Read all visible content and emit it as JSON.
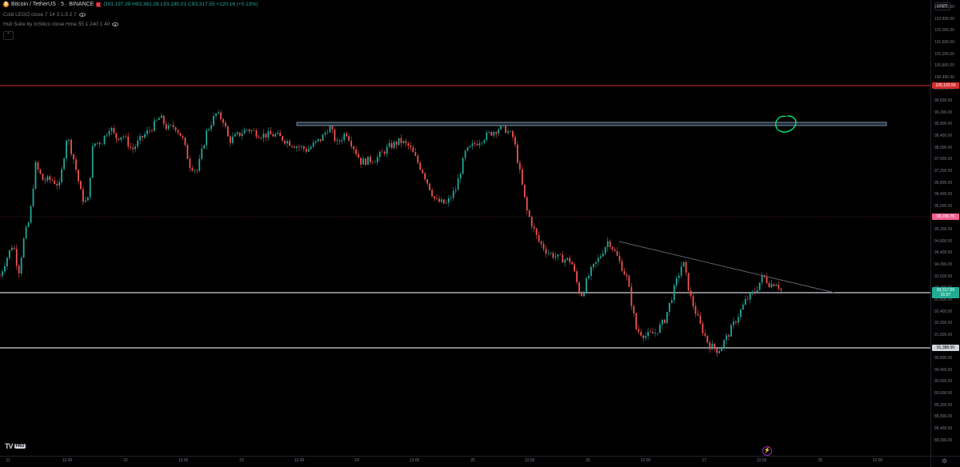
{
  "header": {
    "symbol": "Bitcoin / TetherUS · 5 · BINANCE",
    "ohlc": "O93,197.39 H93,361.28 L93,180.01 C93,317.55 +120.16 (+0.13%)",
    "indicator1": "Cold LEGO close 7 14 3 1.5 2 7",
    "indicator2": "Hull Suite by InSilico close Hma 55 1 240 1 40",
    "collapse_glyph": "⌃"
  },
  "price_axis": {
    "currency": "USDT",
    "ticks": [
      "102,800.00",
      "102,400.00",
      "102,000.00",
      "101,600.00",
      "101,200.00",
      "100,800.00",
      "100,400.00",
      "100,000.00",
      "99,600.00",
      "99,200.00",
      "98,800.00",
      "98,400.00",
      "98,000.00",
      "97,600.00",
      "97,200.00",
      "96,800.00",
      "96,400.00",
      "96,000.00",
      "95,600.00",
      "95,200.00",
      "94,800.00",
      "94,400.00",
      "94,000.00",
      "93,600.00",
      "93,200.00",
      "92,800.00",
      "92,400.00",
      "92,000.00",
      "91,600.00",
      "91,200.00",
      "90,800.00",
      "90,400.00",
      "90,000.00",
      "89,600.00",
      "89,200.00",
      "88,800.00",
      "88,400.00",
      "88,000.00"
    ],
    "label_red": "100,193.50",
    "label_pink": "95,790.75",
    "label_current_price": "93,317.55",
    "label_current_timer": "01:57",
    "label_grey": "91,388.00"
  },
  "time_axis": {
    "labels": [
      "21",
      "12:00",
      "22",
      "12:00",
      "23",
      "12:00",
      "24",
      "12:00",
      "25",
      "12:00",
      "26",
      "12:00",
      "27",
      "12:00",
      "28",
      "12:00"
    ]
  },
  "branding": {
    "logo": "TV",
    "badge": "PRO"
  },
  "colors": {
    "up": "#26a69a",
    "down": "#ef5350",
    "wick": "#b2b5be",
    "red_line": "#d32f2f",
    "pink_label": "#f06292",
    "green_label": "#22ab94",
    "rectangle": "#7d8fa3",
    "trendline": "#5d606b",
    "circle": "#00e676"
  },
  "chart_data": {
    "type": "candlestick",
    "x_range": [
      "21",
      "28 12:00"
    ],
    "ylim": [
      87800,
      103000
    ],
    "path": [
      [
        0,
        93800
      ],
      [
        0.006,
        94300
      ],
      [
        0.014,
        94900
      ],
      [
        0.02,
        93900
      ],
      [
        0.026,
        95100
      ],
      [
        0.032,
        95700
      ],
      [
        0.038,
        97500
      ],
      [
        0.046,
        97000
      ],
      [
        0.056,
        97000
      ],
      [
        0.064,
        96800
      ],
      [
        0.072,
        98500
      ],
      [
        0.08,
        97600
      ],
      [
        0.088,
        96400
      ],
      [
        0.094,
        96200
      ],
      [
        0.1,
        98200
      ],
      [
        0.11,
        98300
      ],
      [
        0.118,
        98800
      ],
      [
        0.124,
        98400
      ],
      [
        0.132,
        98500
      ],
      [
        0.142,
        98000
      ],
      [
        0.152,
        98400
      ],
      [
        0.162,
        98700
      ],
      [
        0.172,
        99100
      ],
      [
        0.18,
        98700
      ],
      [
        0.188,
        98800
      ],
      [
        0.196,
        98400
      ],
      [
        0.204,
        97500
      ],
      [
        0.212,
        97300
      ],
      [
        0.222,
        98600
      ],
      [
        0.232,
        99200
      ],
      [
        0.24,
        99000
      ],
      [
        0.246,
        98300
      ],
      [
        0.256,
        98500
      ],
      [
        0.266,
        98700
      ],
      [
        0.28,
        98500
      ],
      [
        0.296,
        98500
      ],
      [
        0.314,
        98200
      ],
      [
        0.33,
        98000
      ],
      [
        0.346,
        98400
      ],
      [
        0.354,
        98800
      ],
      [
        0.362,
        98200
      ],
      [
        0.372,
        98600
      ],
      [
        0.388,
        97600
      ],
      [
        0.404,
        97700
      ],
      [
        0.418,
        98100
      ],
      [
        0.43,
        98300
      ],
      [
        0.44,
        98100
      ],
      [
        0.454,
        97300
      ],
      [
        0.468,
        96300
      ],
      [
        0.48,
        96200
      ],
      [
        0.49,
        96700
      ],
      [
        0.5,
        97900
      ],
      [
        0.51,
        98200
      ],
      [
        0.524,
        98500
      ],
      [
        0.54,
        98800
      ],
      [
        0.552,
        98400
      ],
      [
        0.566,
        96000
      ],
      [
        0.578,
        95000
      ],
      [
        0.588,
        94600
      ],
      [
        0.6,
        94400
      ],
      [
        0.614,
        94300
      ],
      [
        0.624,
        93100
      ],
      [
        0.634,
        93900
      ],
      [
        0.644,
        94400
      ],
      [
        0.654,
        95000
      ],
      [
        0.664,
        94400
      ],
      [
        0.674,
        93700
      ],
      [
        0.684,
        92000
      ],
      [
        0.694,
        91800
      ],
      [
        0.704,
        91900
      ],
      [
        0.714,
        92300
      ],
      [
        0.724,
        93300
      ],
      [
        0.734,
        94300
      ],
      [
        0.742,
        93100
      ],
      [
        0.752,
        92200
      ],
      [
        0.762,
        91500
      ],
      [
        0.772,
        91300
      ],
      [
        0.782,
        91800
      ],
      [
        0.792,
        92400
      ],
      [
        0.802,
        93000
      ],
      [
        0.812,
        93300
      ],
      [
        0.82,
        93800
      ],
      [
        0.828,
        93500
      ],
      [
        0.834,
        93600
      ],
      [
        0.842,
        93200
      ]
    ]
  }
}
